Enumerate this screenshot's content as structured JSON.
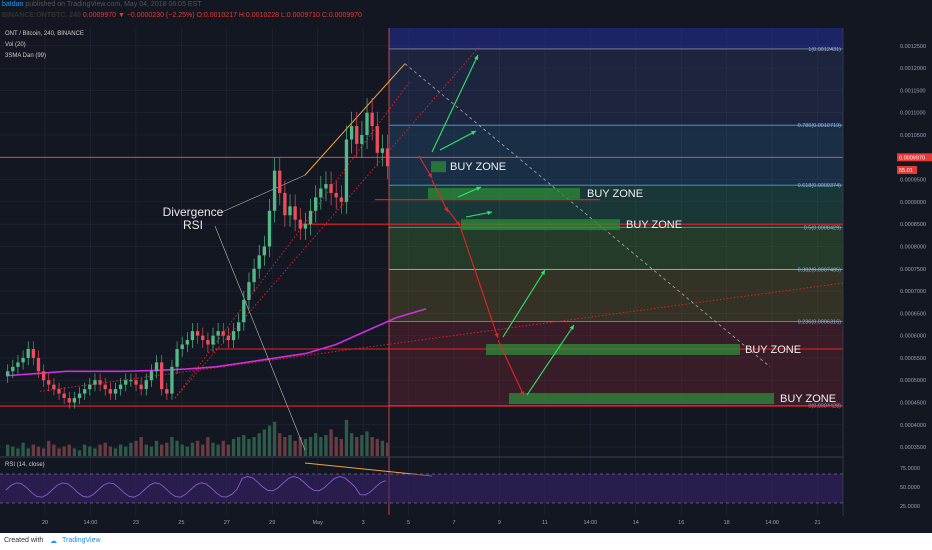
{
  "header": {
    "author": "batdan",
    "published": "published on TradingView.com, May 04, 2018 06:05 EST",
    "symbol_line": "BINANCE:ONTBTC, 240",
    "change": "0.0009970 ▼ −0.0000230 (−2.25%)",
    "ohlc": "O:0.0010217 H:0.0010228 L:0.0009710 C:0.0009970"
  },
  "indicators": {
    "title": "ONT / Bitcoin, 240, BINANCE",
    "vol": "Vol (20)",
    "sma": "3SMA Dan (99)",
    "rsi": "RSI (14, close)"
  },
  "footer": {
    "created_with": "Created with",
    "brand": "TradingView"
  },
  "colors": {
    "bg": "#131722",
    "grid": "#23283a",
    "up": "#53b987",
    "down": "#eb4d5c",
    "sma": "#d02ee0",
    "arrow_up": "#2ee66b",
    "arrow_down": "#e52525",
    "orange": "#f5a23a",
    "buy_zone": "#2e8b3a"
  },
  "chart_data": {
    "type": "candlestick",
    "symbol": "ONT / Bitcoin, 240, BINANCE",
    "price_axis": [
      "0.0012500",
      "0.0012000",
      "0.0011500",
      "0.0011000",
      "0.0010500",
      "0.0010000",
      "0.0009500",
      "0.0009000",
      "0.0008500",
      "0.0008000",
      "0.0007500",
      "0.0007000",
      "0.0006500",
      "0.0006000",
      "0.0005500",
      "0.0005000",
      "0.0004500",
      "0.0004000",
      "0.0003500"
    ],
    "price_range": [
      0.00033,
      0.00129
    ],
    "time_axis": [
      "20",
      "14:00",
      "23",
      "25",
      "27",
      "29",
      "May",
      "3",
      "5",
      "7",
      "9",
      "11",
      "14:00",
      "14",
      "16",
      "18",
      "14:00",
      "21"
    ],
    "last_price": "0.0009970",
    "rsi_value": "55.01",
    "rsi_axis": [
      "75.0000",
      "50.0000",
      "25.0000"
    ],
    "fibonacci": [
      {
        "level": "1",
        "price": 0.0012431,
        "label": "1(0.0012431)"
      },
      {
        "level": "0.786",
        "price": 0.0010719,
        "label": "0.786(0.0010719)"
      },
      {
        "level": "0.618",
        "price": 0.0009374,
        "label": "0.618(0.0009374)"
      },
      {
        "level": "0.5",
        "price": 0.0008429,
        "label": "0.5(0.0008429)"
      },
      {
        "level": "0.382",
        "price": 0.0007485,
        "label": "0.382(0.0007485)"
      },
      {
        "level": "0.236",
        "price": 0.0006316,
        "label": "0.236(0.0006316)"
      },
      {
        "level": "0",
        "price": 0.0004428,
        "label": "0(0.0004428)"
      }
    ],
    "buy_zones": [
      {
        "label": "BUY ZONE",
        "price": 0.00098
      },
      {
        "label": "BUY ZONE",
        "price": 0.00092
      },
      {
        "label": "BUY ZONE",
        "price": 0.00085
      },
      {
        "label": "BUY ZONE",
        "price": 0.00057
      },
      {
        "label": "BUY ZONE",
        "price": 0.00046
      }
    ],
    "annotations": [
      "Divergence",
      "RSI"
    ],
    "closes": [
      0.00052,
      0.00053,
      0.00054,
      0.00055,
      0.00057,
      0.00055,
      0.00052,
      0.0005,
      0.00049,
      0.00048,
      0.00047,
      0.00046,
      0.00045,
      0.00046,
      0.00047,
      0.00048,
      0.00049,
      0.0005,
      0.00049,
      0.00048,
      0.00047,
      0.00048,
      0.00049,
      0.0005,
      0.0005,
      0.00049,
      0.00048,
      0.0005,
      0.00052,
      0.00054,
      0.00048,
      0.00047,
      0.00053,
      0.00057,
      0.00058,
      0.00059,
      0.00061,
      0.0006,
      0.00059,
      0.00058,
      0.0006,
      0.00061,
      0.0006,
      0.00059,
      0.00061,
      0.00063,
      0.00068,
      0.00072,
      0.00075,
      0.00078,
      0.0008,
      0.00088,
      0.00097,
      0.00092,
      0.00087,
      0.00089,
      0.00086,
      0.00084,
      0.00085,
      0.00088,
      0.00091,
      0.00093,
      0.00094,
      0.00092,
      0.00091,
      0.0009,
      0.00104,
      0.00107,
      0.00103,
      0.00105,
      0.0011,
      0.00107,
      0.00101,
      0.00102,
      0.00098
    ],
    "volumes": [
      0.3,
      0.25,
      0.2,
      0.35,
      0.2,
      0.3,
      0.25,
      0.2,
      0.4,
      0.3,
      0.2,
      0.25,
      0.3,
      0.2,
      0.15,
      0.3,
      0.25,
      0.2,
      0.3,
      0.35,
      0.25,
      0.2,
      0.3,
      0.25,
      0.35,
      0.4,
      0.5,
      0.3,
      0.25,
      0.4,
      0.3,
      0.35,
      0.5,
      0.4,
      0.3,
      0.25,
      0.35,
      0.4,
      0.3,
      0.5,
      0.35,
      0.3,
      0.4,
      0.3,
      0.45,
      0.5,
      0.55,
      0.45,
      0.5,
      0.6,
      0.7,
      0.8,
      0.9,
      0.6,
      0.5,
      0.55,
      0.4,
      0.5,
      0.45,
      0.5,
      0.6,
      0.5,
      0.55,
      0.7,
      0.5,
      0.45,
      0.95,
      0.6,
      0.5,
      0.55,
      0.65,
      0.5,
      0.45,
      0.4,
      0.35
    ]
  }
}
